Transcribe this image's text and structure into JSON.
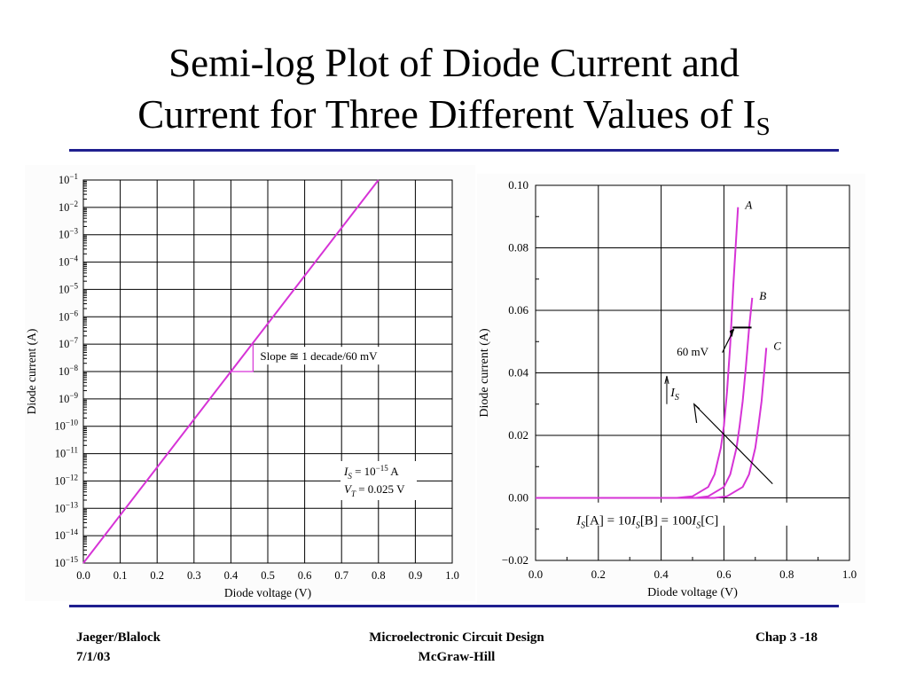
{
  "slide": {
    "title_line1": "Semi-log Plot of Diode Current and",
    "title_line2_main": "Current for Three Different Values of I",
    "title_line2_sub": "S",
    "rule_color": "#1f1f8f"
  },
  "footer": {
    "left_line1": "Jaeger/Blalock",
    "left_line2": "7/1/03",
    "center_line1": "Microelectronic Circuit Design",
    "center_line2": "McGraw-Hill",
    "right": "Chap 3 -18"
  },
  "chart_data": [
    {
      "type": "line",
      "scale_y": "log",
      "xlabel": "Diode voltage (V)",
      "ylabel": "Diode current (A)",
      "xlim": [
        0.0,
        1.0
      ],
      "ylim_exponent": [
        -15,
        -1
      ],
      "x_ticks": [
        "0.0",
        "0.1",
        "0.2",
        "0.3",
        "0.4",
        "0.5",
        "0.6",
        "0.7",
        "0.8",
        "0.9",
        "1.0"
      ],
      "y_tick_exponents": [
        "-1",
        "-2",
        "-3",
        "-4",
        "-5",
        "-6",
        "-7",
        "-8",
        "-9",
        "-10",
        "-11",
        "-12",
        "-13",
        "-14",
        "-15"
      ],
      "y_tick_base": "10",
      "grid": true,
      "series": [
        {
          "color": "#d633d6",
          "x": [
            0.0,
            0.8
          ],
          "y": [
            1e-15,
            0.1
          ]
        }
      ],
      "slope_annotation": "Slope ≅ 1 decade/60 mV",
      "slope_triangle": {
        "x0": 0.4,
        "x1": 0.46,
        "y0": 1e-08,
        "y1": 1e-07
      },
      "params": {
        "is_label": "I",
        "is_sub": "S",
        "is_value": " = 10",
        "is_exp": "−15",
        "is_unit": " A",
        "vt_label": "V",
        "vt_sub": "T",
        "vt_value": " = 0.025 V"
      }
    },
    {
      "type": "line",
      "xlabel": "Diode voltage (V)",
      "ylabel": "Diode current (A)",
      "xlim": [
        0.0,
        1.0
      ],
      "ylim": [
        -0.02,
        0.1
      ],
      "x_ticks": [
        "0.0",
        "0.2",
        "0.4",
        "0.6",
        "0.8",
        "1.0"
      ],
      "y_ticks": [
        "0.10",
        "0.08",
        "0.06",
        "0.04",
        "0.02",
        "0.00",
        "−0.02"
      ],
      "grid": true,
      "series": [
        {
          "name": "A",
          "color": "#d633d6",
          "x": [
            0.0,
            0.45,
            0.5,
            0.55,
            0.57,
            0.59,
            0.6,
            0.61,
            0.62,
            0.63,
            0.64,
            0.645
          ],
          "y": [
            0.0,
            0.0,
            0.0005,
            0.0035,
            0.0075,
            0.016,
            0.023,
            0.034,
            0.049,
            0.068,
            0.085,
            0.093
          ]
        },
        {
          "name": "B",
          "color": "#d633d6",
          "x": [
            0.0,
            0.51,
            0.55,
            0.6,
            0.62,
            0.64,
            0.65,
            0.66,
            0.67,
            0.68,
            0.69
          ],
          "y": [
            0.0,
            0.0,
            0.0005,
            0.0035,
            0.0075,
            0.016,
            0.023,
            0.031,
            0.042,
            0.054,
            0.064
          ]
        },
        {
          "name": "C",
          "color": "#d633d6",
          "x": [
            0.0,
            0.57,
            0.61,
            0.66,
            0.68,
            0.7,
            0.71,
            0.72,
            0.73,
            0.735
          ],
          "y": [
            0.0,
            0.0,
            0.0005,
            0.0035,
            0.0075,
            0.016,
            0.023,
            0.031,
            0.042,
            0.048
          ]
        }
      ],
      "annotations": {
        "mv_label": "60 mV",
        "is_label": "I",
        "is_sub": "S",
        "relation": "I_S[A] = 10 I_S[B] = 100 I_S[C]",
        "relation_parts": [
          "I",
          "S",
          "[A] = 10",
          "I",
          "S",
          "[B] = 100",
          "I",
          "S",
          "[C]"
        ]
      }
    }
  ]
}
